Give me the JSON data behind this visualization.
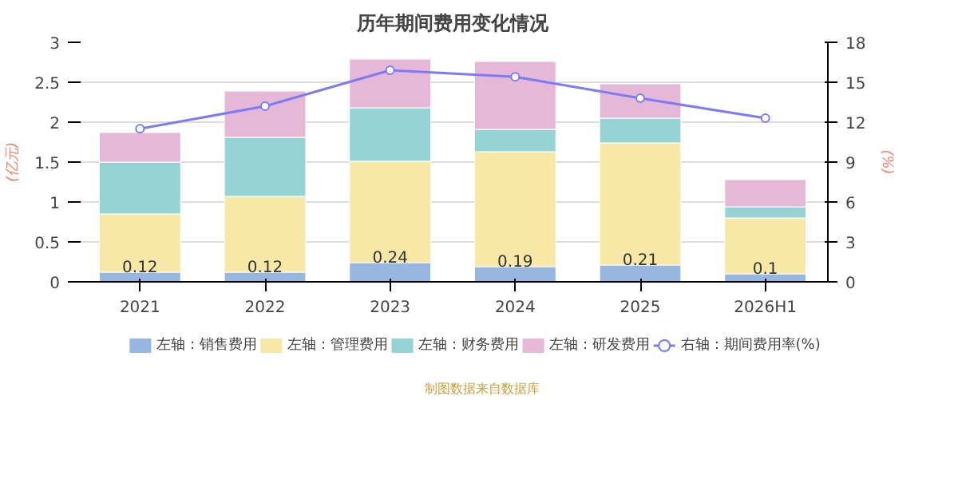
{
  "chart_data": {
    "type": "bar",
    "title": "历年期间费用变化情况",
    "ylabel": "(亿元)",
    "y2label": "(%)",
    "stacked": true,
    "categories": [
      "2021",
      "2022",
      "2023",
      "2024",
      "2025",
      "2026H1"
    ],
    "series": [
      {
        "name": "左轴：销售费用",
        "color": "#97b6e0",
        "values": [
          0.12,
          0.12,
          0.24,
          0.19,
          0.21,
          0.1
        ],
        "value_labels": [
          "0.12",
          "0.12",
          "0.24",
          "0.19",
          "0.21",
          "0.1"
        ]
      },
      {
        "name": "左轴：管理费用",
        "color": "#f8e8a8",
        "values": [
          0.73,
          0.95,
          1.27,
          1.44,
          1.53,
          0.7
        ]
      },
      {
        "name": "左轴：财务费用",
        "color": "#96d3d4",
        "values": [
          0.65,
          0.74,
          0.67,
          0.28,
          0.31,
          0.14
        ]
      },
      {
        "name": "左轴：研发费用",
        "color": "#e6b8d8",
        "values": [
          0.37,
          0.58,
          0.61,
          0.85,
          0.43,
          0.34
        ]
      },
      {
        "name": "右轴：期间费用率(%)",
        "type": "line",
        "axis": "y2",
        "color": "#7b7bf5",
        "marker": "circle",
        "values": [
          11.5,
          13.2,
          15.9,
          15.4,
          13.8,
          12.3
        ]
      }
    ],
    "ylim": [
      0,
      3
    ],
    "yticks": [
      0,
      0.5,
      1,
      1.5,
      2,
      2.5,
      3
    ],
    "y2lim": [
      0,
      18
    ],
    "y2ticks": [
      0,
      3,
      6,
      9,
      12,
      15,
      18
    ],
    "grid": "y",
    "legend": "bottom",
    "annotations": [
      "制图数据来自数据库"
    ]
  }
}
